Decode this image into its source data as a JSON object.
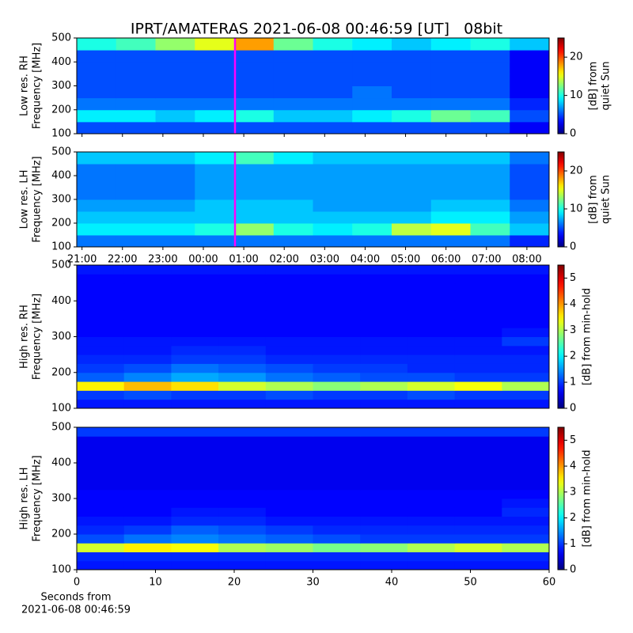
{
  "chart_data": [
    {
      "type": "heatmap",
      "title": "IPRT/AMATERAS 2021-06-08 00:46:59 [UT]   08bit",
      "ylabel": [
        "Low res. RH",
        "Frequency [MHz]"
      ],
      "colorbar_label": [
        "[dB] from",
        "quiet Sun"
      ],
      "colormap": "jet",
      "xlim": [
        20.87,
        32.55
      ],
      "ylim": [
        100,
        500
      ],
      "yticks": [
        100,
        200,
        300,
        400,
        500
      ],
      "clim": [
        0,
        25
      ],
      "cticks": [
        0,
        10,
        20
      ],
      "vline": 24.783,
      "vline_color": "#ff00ff",
      "z": [
        [
          5,
          5,
          5,
          5,
          5,
          5,
          5,
          5,
          5,
          5,
          5,
          3
        ],
        [
          9,
          9,
          8,
          9,
          10,
          8,
          8,
          9,
          10,
          12,
          11,
          5
        ],
        [
          6,
          6,
          6,
          6,
          6,
          6,
          6,
          6,
          6,
          6,
          6,
          4
        ],
        [
          5,
          5,
          5,
          5,
          5,
          5,
          5,
          6,
          5,
          5,
          5,
          3
        ],
        [
          5,
          5,
          5,
          5,
          5,
          5,
          5,
          5,
          5,
          5,
          5,
          3
        ],
        [
          5,
          5,
          5,
          5,
          5,
          5,
          5,
          5,
          5,
          5,
          5,
          3
        ],
        [
          5,
          5,
          5,
          5,
          5,
          5,
          5,
          5,
          5,
          5,
          5,
          3
        ],
        [
          10,
          11,
          13,
          15,
          18,
          12,
          10,
          9,
          8,
          9,
          10,
          8
        ]
      ]
    },
    {
      "type": "heatmap",
      "ylabel": [
        "Low res. LH",
        "Frequency [MHz]"
      ],
      "colorbar_label": [
        "[dB] from",
        "quiet Sun"
      ],
      "colormap": "jet",
      "xlim": [
        20.87,
        32.55
      ],
      "xticks": [
        {
          "value": 21,
          "label": "21:00"
        },
        {
          "value": 22,
          "label": "22:00"
        },
        {
          "value": 23,
          "label": "23:00"
        },
        {
          "value": 24,
          "label": "00:00"
        },
        {
          "value": 25,
          "label": "01:00"
        },
        {
          "value": 26,
          "label": "02:00"
        },
        {
          "value": 27,
          "label": "03:00"
        },
        {
          "value": 28,
          "label": "04:00"
        },
        {
          "value": 29,
          "label": "05:00"
        },
        {
          "value": 30,
          "label": "06:00"
        },
        {
          "value": 31,
          "label": "07:00"
        },
        {
          "value": 32,
          "label": "08:00"
        }
      ],
      "ylim": [
        100,
        500
      ],
      "yticks": [
        100,
        200,
        300,
        400,
        500
      ],
      "clim": [
        0,
        25
      ],
      "cticks": [
        0,
        10,
        20
      ],
      "vline": 24.783,
      "vline_color": "#ff00ff",
      "z": [
        [
          6,
          6,
          6,
          6,
          6,
          6,
          6,
          6,
          6,
          6,
          6,
          4
        ],
        [
          9,
          9,
          9,
          10,
          13,
          10,
          9,
          10,
          14,
          15,
          11,
          8
        ],
        [
          8,
          8,
          8,
          8,
          8,
          8,
          8,
          8,
          8,
          9,
          9,
          7
        ],
        [
          7,
          7,
          7,
          8,
          8,
          8,
          7,
          7,
          7,
          8,
          8,
          6
        ],
        [
          6,
          6,
          6,
          7,
          7,
          7,
          7,
          7,
          7,
          7,
          7,
          5
        ],
        [
          6,
          6,
          6,
          7,
          7,
          7,
          7,
          7,
          7,
          7,
          7,
          5
        ],
        [
          6,
          6,
          6,
          7,
          7,
          7,
          7,
          7,
          7,
          7,
          7,
          5
        ],
        [
          8,
          8,
          8,
          9,
          11,
          9,
          8,
          8,
          8,
          8,
          8,
          6
        ]
      ]
    },
    {
      "type": "heatmap",
      "ylabel": [
        "High res. RH",
        "Frequency [MHz]"
      ],
      "colorbar_label": [
        "[dB] from min-hold"
      ],
      "colormap": "jet",
      "xlim": [
        0,
        60
      ],
      "ylim": [
        100,
        500
      ],
      "yticks": [
        100,
        200,
        300,
        400,
        500
      ],
      "clim": [
        0,
        5.5
      ],
      "cticks": [
        0,
        1,
        2,
        3,
        4,
        5
      ],
      "z": [
        [
          0.8,
          0.8,
          0.8,
          0.8,
          0.8,
          0.8,
          0.8,
          0.8,
          0.8,
          0.8
        ],
        [
          1.0,
          1.1,
          1.0,
          1.0,
          1.1,
          1.0,
          1.0,
          1.1,
          1.0,
          1.0
        ],
        [
          3.5,
          3.8,
          3.6,
          3.2,
          3.0,
          2.8,
          3.0,
          3.2,
          3.4,
          3.0
        ],
        [
          1.2,
          1.4,
          1.6,
          1.5,
          1.3,
          1.2,
          1.1,
          1.1,
          1.0,
          1.0
        ],
        [
          1.0,
          1.1,
          1.3,
          1.2,
          1.1,
          1.0,
          1.0,
          0.9,
          0.9,
          0.9
        ],
        [
          0.9,
          0.9,
          1.0,
          1.0,
          0.9,
          0.9,
          0.9,
          0.9,
          0.9,
          0.9
        ],
        [
          0.8,
          0.8,
          0.9,
          0.9,
          0.8,
          0.8,
          0.8,
          0.8,
          0.8,
          0.8
        ],
        [
          0.8,
          0.8,
          0.8,
          0.8,
          0.8,
          0.8,
          0.8,
          0.8,
          0.8,
          1.0
        ],
        [
          0.7,
          0.7,
          0.7,
          0.7,
          0.7,
          0.7,
          0.7,
          0.7,
          0.7,
          0.8
        ],
        [
          0.7,
          0.7,
          0.7,
          0.7,
          0.7,
          0.7,
          0.7,
          0.7,
          0.7,
          0.7
        ],
        [
          0.7,
          0.7,
          0.7,
          0.7,
          0.7,
          0.7,
          0.7,
          0.7,
          0.7,
          0.7
        ],
        [
          0.7,
          0.7,
          0.7,
          0.7,
          0.7,
          0.7,
          0.7,
          0.7,
          0.7,
          0.7
        ],
        [
          0.7,
          0.7,
          0.7,
          0.7,
          0.7,
          0.7,
          0.7,
          0.7,
          0.7,
          0.7
        ],
        [
          0.7,
          0.7,
          0.7,
          0.7,
          0.7,
          0.7,
          0.7,
          0.7,
          0.7,
          0.7
        ],
        [
          0.7,
          0.7,
          0.7,
          0.7,
          0.7,
          0.7,
          0.7,
          0.7,
          0.7,
          0.7
        ],
        [
          0.8,
          0.8,
          0.8,
          0.8,
          0.8,
          0.8,
          0.8,
          0.8,
          0.8,
          0.8
        ]
      ]
    },
    {
      "type": "heatmap",
      "ylabel": [
        "High res. LH",
        "Frequency [MHz]"
      ],
      "colorbar_label": [
        "[dB] from min-hold"
      ],
      "colormap": "jet",
      "xlim": [
        0,
        60
      ],
      "xticks": [
        0,
        10,
        20,
        30,
        40,
        50,
        60
      ],
      "xlabel": [
        "Seconds from",
        "2021-06-08 00:46:59"
      ],
      "ylim": [
        100,
        500
      ],
      "yticks": [
        100,
        200,
        300,
        400,
        500
      ],
      "clim": [
        0,
        5.5
      ],
      "cticks": [
        0,
        1,
        2,
        3,
        4,
        5
      ],
      "z": [
        [
          0.8,
          0.8,
          0.8,
          0.8,
          0.8,
          0.8,
          0.8,
          0.8,
          0.8,
          0.8
        ],
        [
          0.9,
          0.9,
          0.9,
          0.9,
          0.9,
          0.9,
          0.9,
          0.9,
          0.9,
          0.9
        ],
        [
          3.2,
          3.5,
          3.4,
          3.0,
          2.9,
          2.7,
          2.8,
          3.0,
          3.2,
          3.0
        ],
        [
          1.1,
          1.3,
          1.4,
          1.3,
          1.2,
          1.1,
          1.0,
          1.0,
          1.0,
          1.0
        ],
        [
          0.9,
          1.0,
          1.2,
          1.1,
          1.0,
          0.9,
          0.9,
          0.9,
          0.9,
          0.9
        ],
        [
          0.8,
          0.8,
          0.9,
          0.9,
          0.8,
          0.8,
          0.8,
          0.8,
          0.8,
          0.8
        ],
        [
          0.7,
          0.7,
          0.8,
          0.8,
          0.7,
          0.7,
          0.7,
          0.7,
          0.7,
          0.9
        ],
        [
          0.7,
          0.7,
          0.7,
          0.7,
          0.7,
          0.7,
          0.7,
          0.7,
          0.7,
          0.8
        ],
        [
          0.7,
          0.7,
          0.7,
          0.7,
          0.7,
          0.7,
          0.7,
          0.7,
          0.7,
          0.7
        ],
        [
          0.6,
          0.6,
          0.6,
          0.6,
          0.6,
          0.6,
          0.6,
          0.6,
          0.6,
          0.6
        ],
        [
          0.6,
          0.6,
          0.6,
          0.6,
          0.6,
          0.6,
          0.6,
          0.6,
          0.6,
          0.6
        ],
        [
          0.6,
          0.6,
          0.6,
          0.6,
          0.6,
          0.6,
          0.6,
          0.6,
          0.6,
          0.6
        ],
        [
          0.6,
          0.6,
          0.6,
          0.6,
          0.6,
          0.6,
          0.6,
          0.6,
          0.6,
          0.6
        ],
        [
          0.6,
          0.6,
          0.6,
          0.6,
          0.6,
          0.6,
          0.6,
          0.6,
          0.6,
          0.6
        ],
        [
          0.6,
          0.6,
          0.6,
          0.6,
          0.6,
          0.6,
          0.6,
          0.6,
          0.6,
          0.6
        ],
        [
          1.0,
          1.0,
          1.0,
          1.0,
          1.0,
          1.0,
          1.0,
          1.0,
          1.0,
          1.0
        ]
      ]
    }
  ]
}
